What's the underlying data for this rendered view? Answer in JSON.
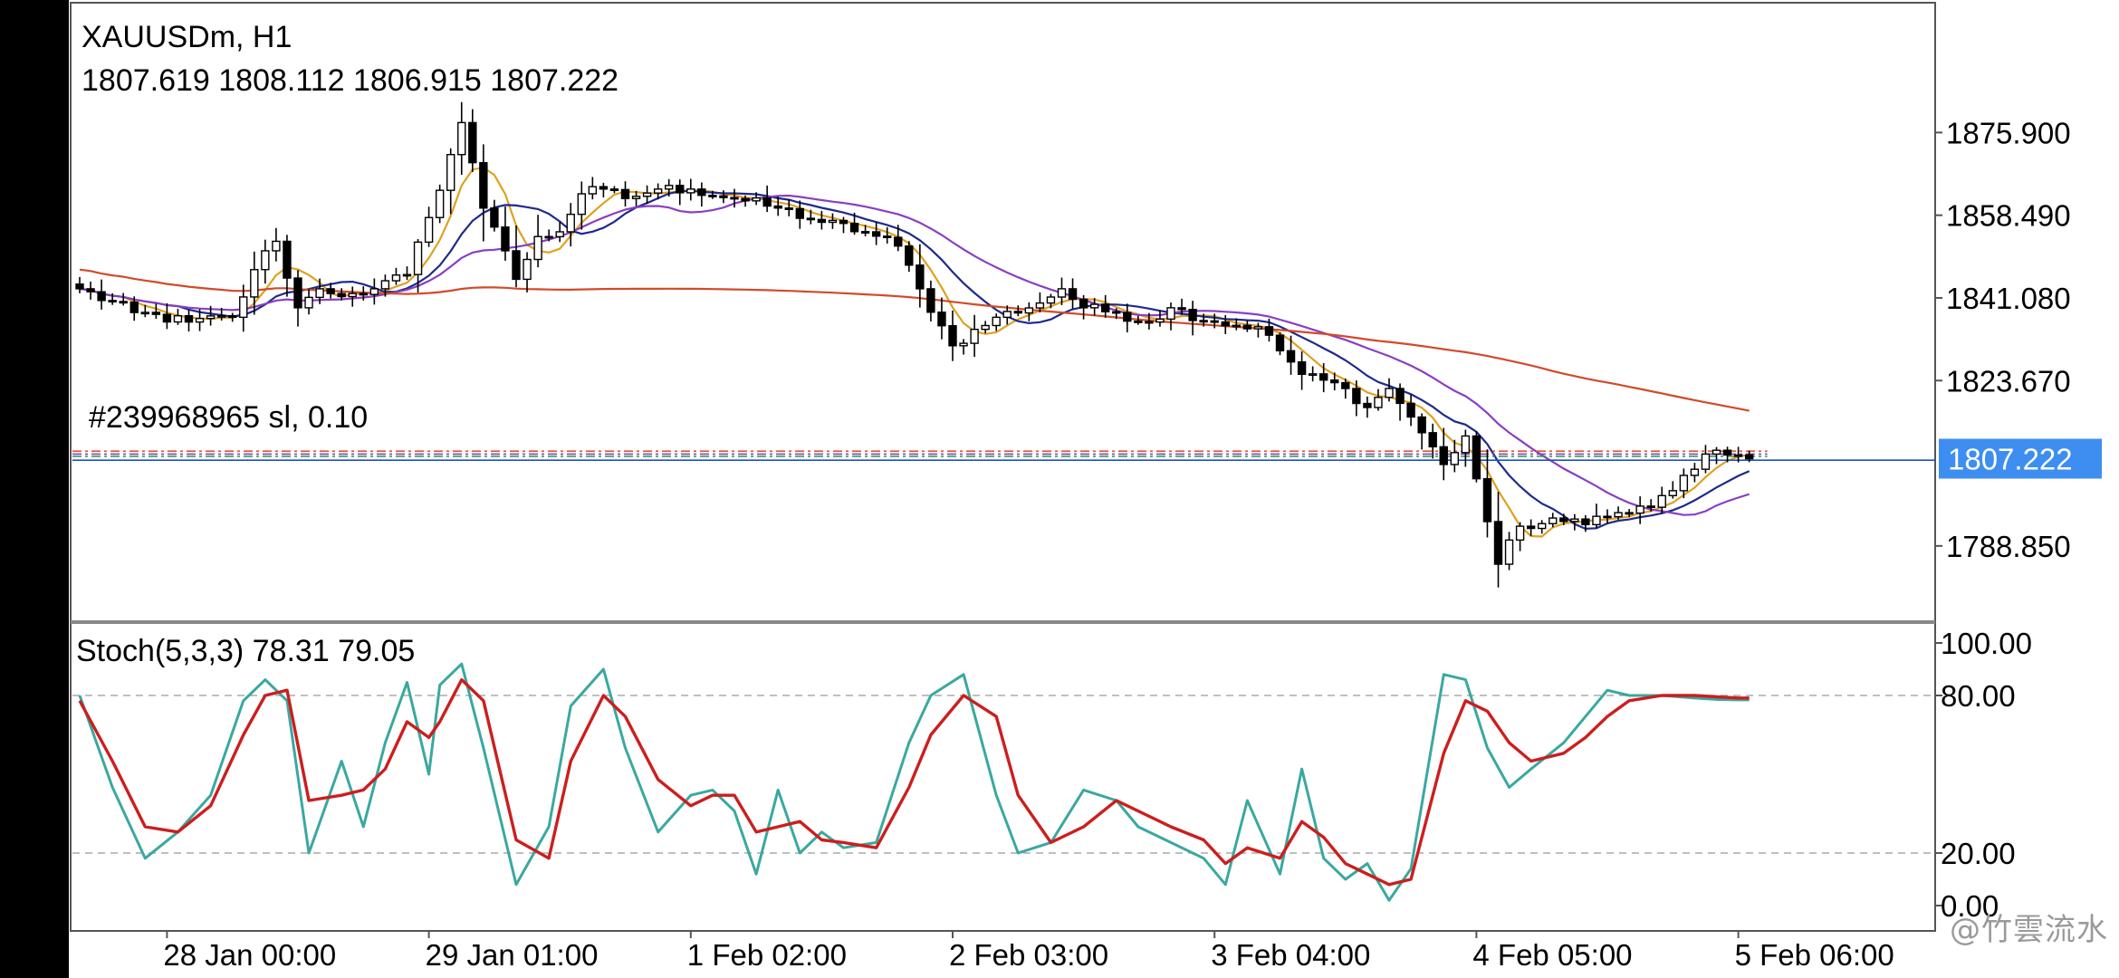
{
  "header": {
    "symbol_timeframe": "XAUUSDm, H1",
    "ohlc": "1807.619 1808.112 1806.915 1807.222"
  },
  "order_label": "#239968965 sl, 0.10",
  "watermark": "@竹雲流水",
  "colors": {
    "background": "#ffffff",
    "bull_fill": "#ffffff",
    "bear_fill": "#000000",
    "ma_fast": "#e0a020",
    "ma_mid": "#1f2a8a",
    "ma_slow": "#8a3fc0",
    "ma_long": "#d24a2a",
    "stoch_main": "#3aa8a0",
    "stoch_signal": "#cc1e1e",
    "price_tag": "#3d8ef0",
    "order_line": "#e05a2a",
    "tp_line": "#2a9a50",
    "bid_line": "#2050c0"
  },
  "chart_data": [
    {
      "type": "candlestick",
      "title": "XAUUSDm, H1",
      "ylim": [
        1777,
        1900
      ],
      "y_ticks": [
        "1875.900",
        "1858.490",
        "1841.080",
        "1823.670",
        "1788.850"
      ],
      "y_tick_values": [
        1875.9,
        1858.49,
        1841.08,
        1823.67,
        1788.85
      ],
      "current_price": "1807.222",
      "current_price_value": 1807.222,
      "x_ticks": [
        "28 Jan 00:00",
        "29 Jan 01:00",
        "1 Feb 02:00",
        "2 Feb 03:00",
        "3 Feb 04:00",
        "4 Feb 05:00",
        "5 Feb 06:00"
      ],
      "x_tick_bars": [
        8,
        32,
        56,
        80,
        104,
        128,
        152
      ],
      "order_level": 1808.8,
      "order_levels_extra": [
        1808.2,
        1807.7
      ],
      "bid_level": 1806.9,
      "anchors": {
        "bars": [
          0,
          5,
          10,
          14,
          17,
          18,
          20,
          22,
          23,
          25,
          27,
          30,
          32,
          35,
          37,
          38,
          39,
          40,
          42,
          44,
          46,
          48,
          50,
          53,
          56,
          60,
          64,
          68,
          72,
          75,
          77,
          80,
          84,
          88,
          90,
          92,
          95,
          98,
          100,
          104,
          108,
          112,
          116,
          118,
          120,
          122,
          125,
          127,
          128,
          130,
          132,
          136,
          140,
          144,
          148,
          150,
          151,
          152,
          153
        ],
        "close": [
          1843,
          1838,
          1836,
          1837,
          1851,
          1853,
          1839,
          1843,
          1842,
          1842,
          1843,
          1846,
          1858,
          1878,
          1860,
          1856,
          1851,
          1845,
          1854,
          1855,
          1863,
          1864,
          1862,
          1864,
          1864,
          1862,
          1860,
          1857,
          1855,
          1852,
          1843,
          1831,
          1837,
          1840,
          1843,
          1839,
          1838,
          1836,
          1839,
          1836,
          1835,
          1825,
          1822,
          1818,
          1822,
          1816,
          1806,
          1812,
          1803,
          1785,
          1793,
          1794,
          1795,
          1797,
          1805,
          1809,
          1808,
          1808,
          1807.2
        ]
      },
      "ma_periods": [
        5,
        10,
        20,
        100
      ]
    },
    {
      "type": "line",
      "title": "Stoch(5,3,3) 78.31 79.05",
      "ylim": [
        0,
        100
      ],
      "y_ticks": [
        "100.00",
        "80.00",
        "20.00",
        "0.00"
      ],
      "y_tick_values": [
        100,
        80,
        20,
        0
      ],
      "levels": [
        80,
        20
      ],
      "main_last": 78.31,
      "signal_last": 79.05,
      "series": [
        {
          "name": "main",
          "x": [
            0,
            3,
            6,
            9,
            12,
            15,
            17,
            19,
            21,
            24,
            26,
            28,
            30,
            32,
            33,
            35,
            37,
            40,
            43,
            45,
            48,
            50,
            53,
            56,
            58,
            60,
            62,
            64,
            66,
            68,
            70,
            73,
            76,
            78,
            81,
            84,
            86,
            89,
            92,
            95,
            97,
            100,
            103,
            105,
            107,
            110,
            112,
            114,
            116,
            118,
            120,
            122,
            125,
            127,
            129,
            131,
            133,
            136,
            138,
            140,
            142,
            145,
            148,
            150,
            152,
            153
          ],
          "values": [
            80,
            45,
            18,
            28,
            42,
            78,
            86,
            78,
            20,
            55,
            30,
            62,
            85,
            50,
            84,
            92,
            60,
            8,
            30,
            76,
            90,
            60,
            28,
            42,
            44,
            36,
            12,
            44,
            20,
            28,
            22,
            24,
            62,
            80,
            88,
            42,
            20,
            24,
            44,
            40,
            30,
            24,
            18,
            8,
            40,
            12,
            52,
            18,
            10,
            16,
            2,
            14,
            88,
            86,
            60,
            45,
            52,
            62,
            72,
            82,
            80,
            80,
            79,
            78.5,
            78.31,
            78.31
          ]
        },
        {
          "name": "signal",
          "x": [
            0,
            3,
            6,
            9,
            12,
            15,
            17,
            19,
            21,
            24,
            26,
            28,
            30,
            32,
            33,
            35,
            37,
            40,
            43,
            45,
            48,
            50,
            53,
            56,
            58,
            60,
            62,
            64,
            66,
            68,
            70,
            73,
            76,
            78,
            81,
            84,
            86,
            89,
            92,
            95,
            97,
            100,
            103,
            105,
            107,
            110,
            112,
            114,
            116,
            118,
            120,
            122,
            125,
            127,
            129,
            131,
            133,
            136,
            138,
            140,
            142,
            145,
            148,
            150,
            152,
            153
          ],
          "values": [
            78,
            55,
            30,
            28,
            38,
            65,
            80,
            82,
            40,
            42,
            44,
            52,
            70,
            64,
            70,
            86,
            78,
            25,
            18,
            55,
            80,
            72,
            48,
            38,
            42,
            42,
            28,
            30,
            32,
            25,
            24,
            22,
            45,
            65,
            80,
            72,
            42,
            24,
            30,
            40,
            36,
            30,
            25,
            16,
            22,
            18,
            32,
            26,
            16,
            12,
            8,
            10,
            58,
            78,
            74,
            62,
            55,
            58,
            64,
            72,
            78,
            80,
            80,
            79.5,
            79.05,
            79.05
          ]
        }
      ]
    }
  ]
}
